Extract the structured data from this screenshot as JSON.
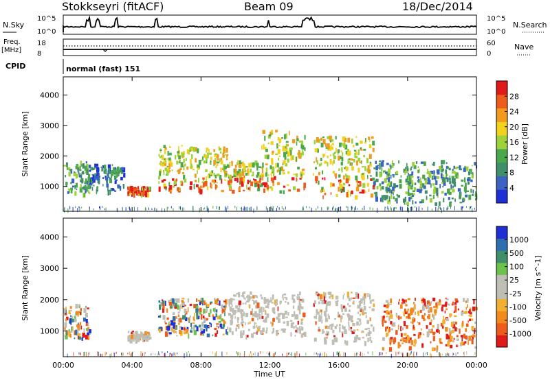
{
  "header": {
    "station": "Stokkseyri (fitACF)",
    "beam": "Beam 09",
    "date": "18/Dec/2014"
  },
  "top_panels": {
    "nsky_label": "N.Sky",
    "nsky_tick_top": "10^5",
    "nsky_tick_bottom": "10^0",
    "nsearch_label": "N.Search",
    "nsearch_tick_top": "10^5",
    "nsearch_tick_bottom": "10^0",
    "freq_label_line1": "Freq.",
    "freq_label_line2": "[MHz]",
    "freq_tick_top": "18",
    "freq_tick_bottom": "8",
    "nave_label": "Nave",
    "nave_tick_top": "60",
    "nave_tick_bottom": "0",
    "cpid_label": "CPID",
    "cpid_value": "normal (fast) 151"
  },
  "colors": {
    "power_scale": [
      "#1e2fd6",
      "#3b63c4",
      "#3f8f6a",
      "#4aa84a",
      "#9fd23a",
      "#f2d21d",
      "#f29a1e",
      "#ef5a1d",
      "#e01a1a"
    ],
    "velocity_scale": [
      "#e01a1a",
      "#ef5a1d",
      "#f28a1e",
      "#f2b032",
      "#bebeb4",
      "#bebeb4",
      "#6cc24a",
      "#3f8f6a",
      "#2f6fb0",
      "#1e2fd6"
    ],
    "ground_scatter": "#bebeb4"
  },
  "chart_data": [
    {
      "type": "heatmap",
      "name_text": "Power panel",
      "ylabel": "Slant Range [km]",
      "xlabel": "Time UT",
      "x_ticks": [
        "00:00",
        "04:00",
        "08:00",
        "12:00",
        "16:00",
        "20:00",
        "00:00"
      ],
      "y_ticks": [
        "1000",
        "2000",
        "3000",
        "4000"
      ],
      "ylim": [
        180,
        4600
      ],
      "xlim_hours": [
        0,
        24
      ],
      "colorbar": {
        "label": "Power [dB]",
        "ticks": [
          "4",
          "8",
          "12",
          "16",
          "20",
          "24",
          "28"
        ],
        "range": [
          0,
          30
        ]
      },
      "echo_regions": [
        {
          "t0": 0.0,
          "t1": 1.5,
          "r0": 700,
          "r1": 1800,
          "level": "mid"
        },
        {
          "t0": 1.5,
          "t1": 3.5,
          "r0": 800,
          "r1": 1700,
          "level": "low"
        },
        {
          "t0": 3.7,
          "t1": 5.0,
          "r0": 700,
          "r1": 950,
          "level": "high"
        },
        {
          "t0": 5.5,
          "t1": 9.5,
          "r0": 800,
          "r1": 2300,
          "level": "high"
        },
        {
          "t0": 9.5,
          "t1": 11.5,
          "r0": 800,
          "r1": 1800,
          "level": "high"
        },
        {
          "t0": 11.5,
          "t1": 14.0,
          "r0": 800,
          "r1": 2800,
          "level": "high"
        },
        {
          "t0": 14.5,
          "t1": 18.0,
          "r0": 600,
          "r1": 2600,
          "level": "high"
        },
        {
          "t0": 18.0,
          "t1": 24.0,
          "r0": 400,
          "r1": 1800,
          "level": "mid"
        }
      ]
    },
    {
      "type": "heatmap",
      "name_text": "Velocity panel",
      "ylabel": "Slant Range [km]",
      "xlabel": "Time UT",
      "x_ticks": [
        "00:00",
        "04:00",
        "08:00",
        "12:00",
        "16:00",
        "20:00",
        "00:00"
      ],
      "y_ticks": [
        "1000",
        "2000",
        "3000",
        "4000"
      ],
      "ylim": [
        180,
        4600
      ],
      "xlim_hours": [
        0,
        24
      ],
      "colorbar": {
        "label": "Velocity [m s^-1]",
        "ticks": [
          "-1000",
          "-500",
          "-100",
          "-25",
          "25",
          "100",
          "500",
          "1000"
        ],
        "range": [
          -1000,
          1000
        ]
      },
      "echo_regions": [
        {
          "t0": 0.0,
          "t1": 1.5,
          "r0": 700,
          "r1": 1800,
          "vel": "mixed"
        },
        {
          "t0": 3.7,
          "t1": 5.0,
          "r0": 700,
          "r1": 950,
          "vel": "ground"
        },
        {
          "t0": 5.5,
          "t1": 9.5,
          "r0": 800,
          "r1": 2000,
          "vel": "mixed"
        },
        {
          "t0": 9.5,
          "t1": 14.0,
          "r0": 800,
          "r1": 2200,
          "vel": "ground"
        },
        {
          "t0": 14.5,
          "t1": 18.0,
          "r0": 600,
          "r1": 2200,
          "vel": "ground"
        },
        {
          "t0": 18.5,
          "t1": 24.0,
          "r0": 400,
          "r1": 2000,
          "vel": "negative"
        }
      ]
    }
  ]
}
